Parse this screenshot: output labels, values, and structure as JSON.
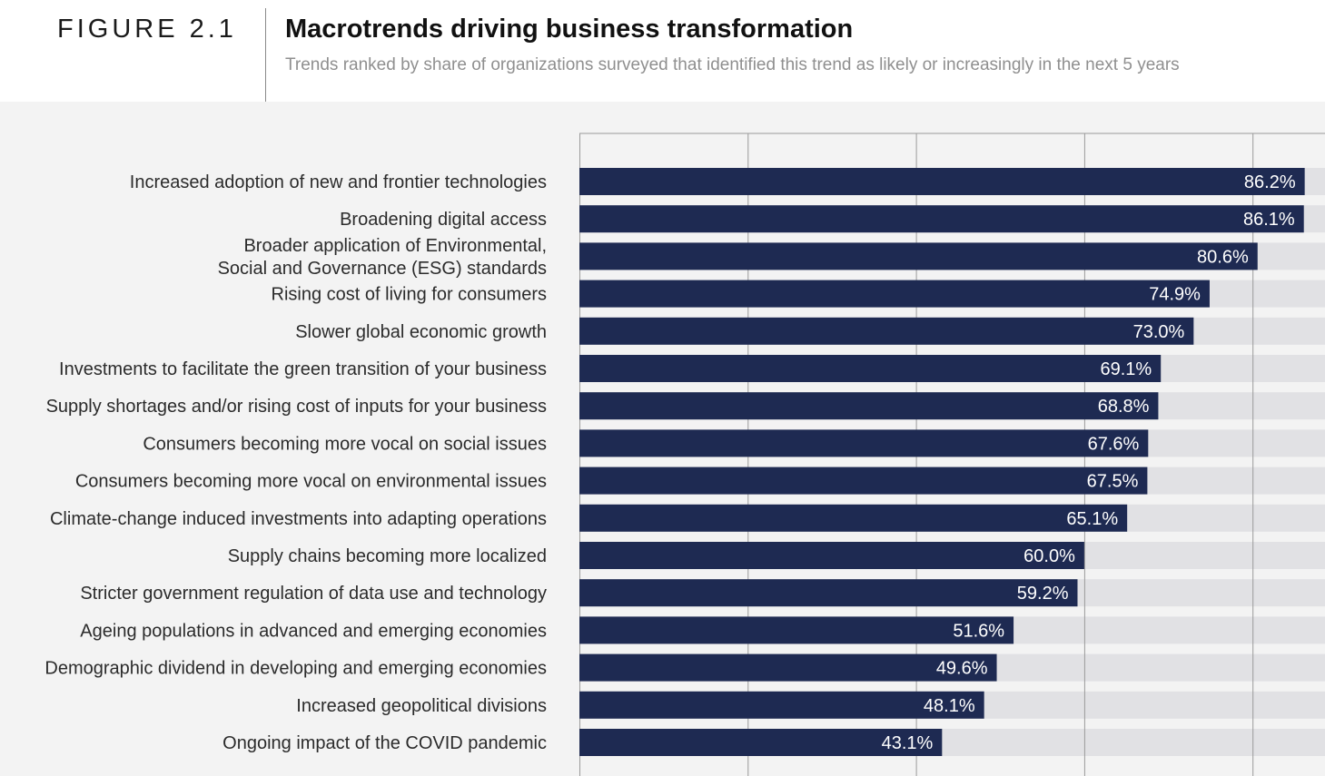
{
  "header": {
    "figure_label": "FIGURE 2.1",
    "title": "Macrotrends driving business transformation",
    "subtitle": "Trends ranked by share of organizations surveyed that identified this trend as likely or increasingly in the next 5 years"
  },
  "colors": {
    "bar": "#1e2a52",
    "track": "#e1e1e4",
    "gridline": "#9a9a9a",
    "background": "#f3f3f3"
  },
  "chart_data": {
    "type": "bar",
    "orientation": "horizontal",
    "title": "Macrotrends driving business transformation",
    "subtitle": "Trends ranked by share of organizations surveyed that identified this trend as likely or increasingly in the next 5 years",
    "xlim": [
      0,
      100
    ],
    "grid": true,
    "categories": [
      [
        "Increased adoption of new and frontier technologies"
      ],
      [
        "Broadening digital access"
      ],
      [
        "Broader application of Environmental,",
        "Social and Governance (ESG) standards"
      ],
      [
        "Rising cost of living for consumers"
      ],
      [
        "Slower global economic growth"
      ],
      [
        "Investments to facilitate the green transition of your business"
      ],
      [
        "Supply shortages and/or rising cost of inputs for your business"
      ],
      [
        "Consumers becoming more vocal on social issues"
      ],
      [
        "Consumers becoming more vocal on environmental issues"
      ],
      [
        "Climate-change induced investments into adapting operations"
      ],
      [
        "Supply chains becoming more localized"
      ],
      [
        "Stricter government regulation of data use and technology"
      ],
      [
        "Ageing populations in advanced and emerging economies"
      ],
      [
        "Demographic dividend in developing and emerging economies"
      ],
      [
        "Increased geopolitical divisions"
      ],
      [
        "Ongoing impact of the COVID pandemic"
      ]
    ],
    "values": [
      86.2,
      86.1,
      80.6,
      74.9,
      73.0,
      69.1,
      68.8,
      67.6,
      67.5,
      65.1,
      60.0,
      59.2,
      51.6,
      49.6,
      48.1,
      43.1
    ],
    "value_labels": [
      "86.2%",
      "86.1%",
      "80.6%",
      "74.9%",
      "73.0%",
      "69.1%",
      "68.8%",
      "67.6%",
      "67.5%",
      "65.1%",
      "60.0%",
      "59.2%",
      "51.6%",
      "49.6%",
      "48.1%",
      "43.1%"
    ]
  }
}
